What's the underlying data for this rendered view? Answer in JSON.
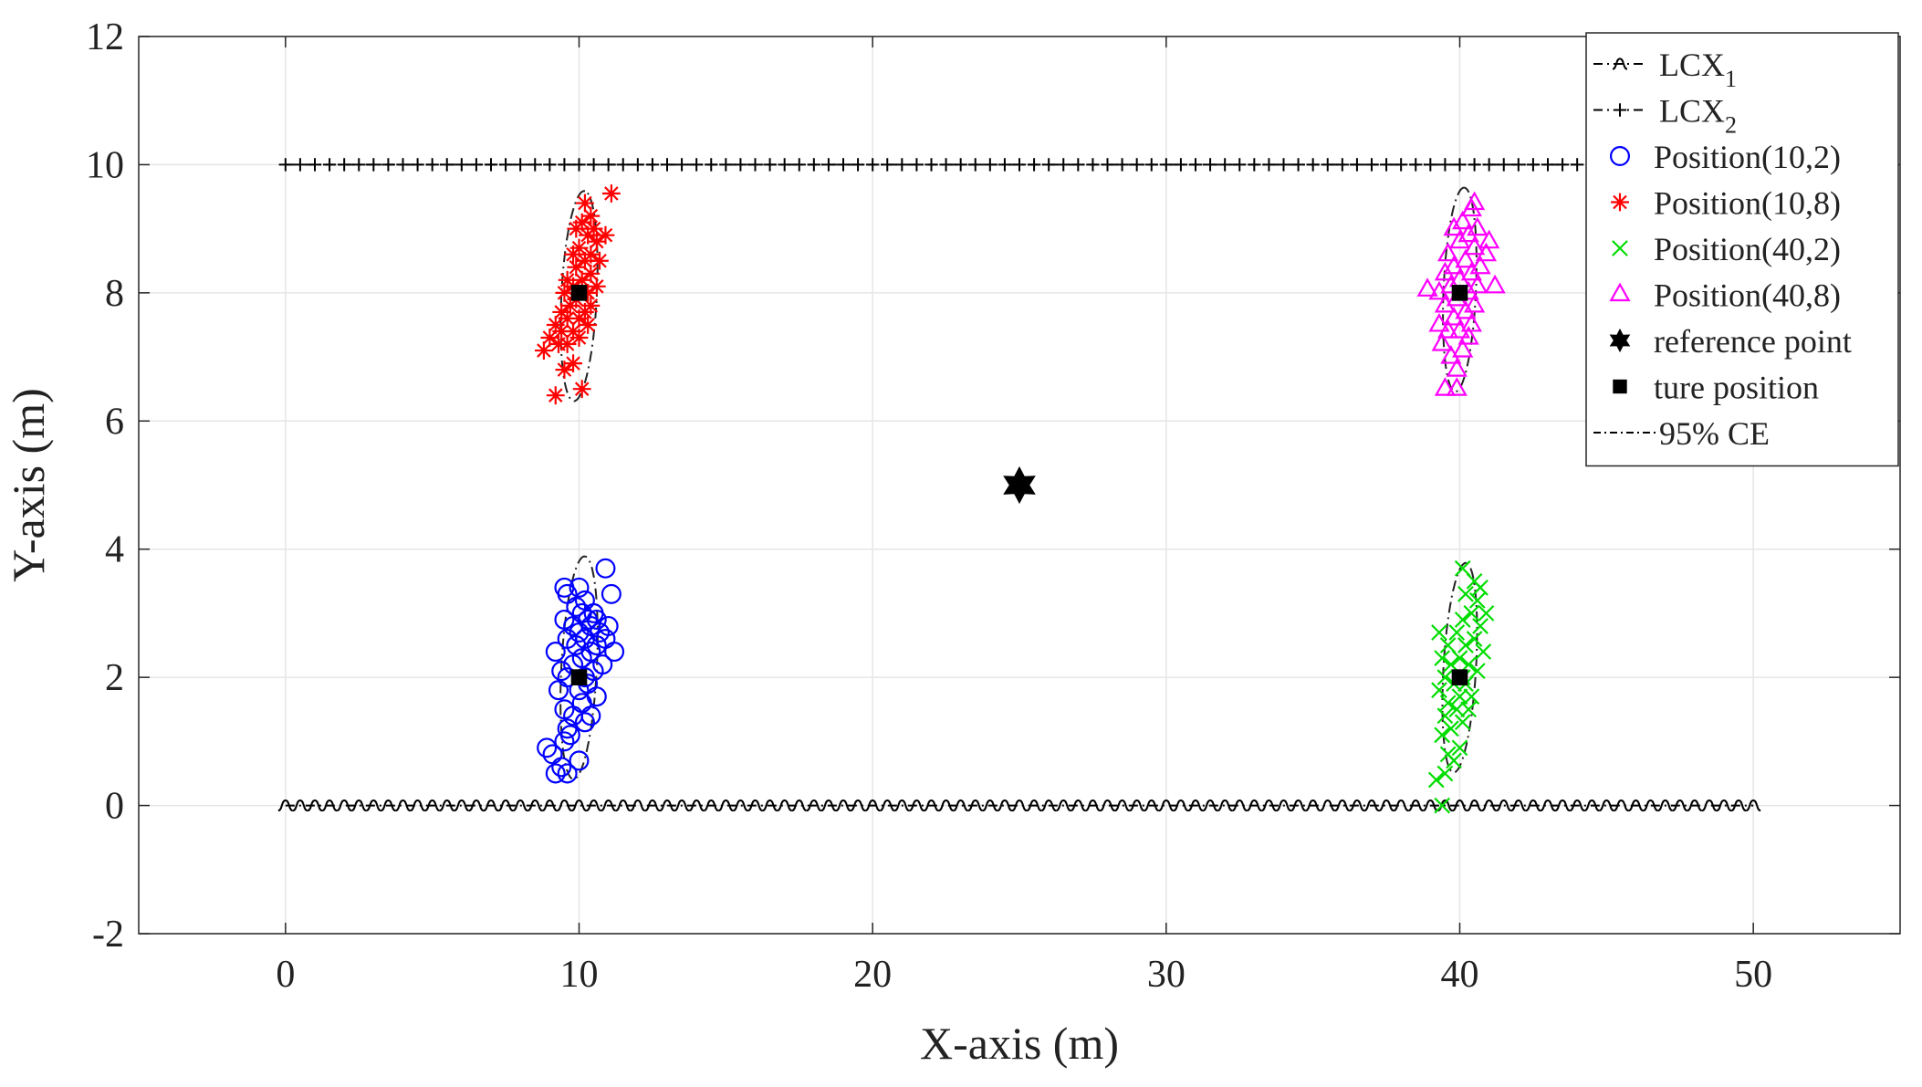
{
  "chart_data": {
    "type": "scatter",
    "title": "",
    "xlabel": "X-axis (m)",
    "ylabel": "Y-axis (m)",
    "xlim": [
      -5,
      55
    ],
    "ylim": [
      -2,
      12
    ],
    "xticks": [
      0,
      10,
      20,
      30,
      40,
      50
    ],
    "yticks": [
      -2,
      0,
      2,
      4,
      6,
      8,
      10,
      12
    ],
    "grid": true,
    "legend_position": "top-right",
    "cables": [
      {
        "name": "LCX",
        "subscript": "1",
        "y": 0,
        "x_range": [
          0,
          50
        ],
        "marker": "s-curl",
        "style": "dash-dot"
      },
      {
        "name": "LCX",
        "subscript": "2",
        "y": 10,
        "x_range": [
          0,
          44
        ],
        "marker": "plus",
        "style": "dash-dot"
      }
    ],
    "series": [
      {
        "name": "Position(10,2)",
        "marker": "circle",
        "color": "#0000ff",
        "points": [
          [
            9.2,
            0.5
          ],
          [
            9.4,
            0.6
          ],
          [
            9.6,
            0.5
          ],
          [
            10.0,
            0.7
          ],
          [
            9.1,
            0.8
          ],
          [
            8.9,
            0.9
          ],
          [
            9.5,
            1.0
          ],
          [
            9.7,
            1.1
          ],
          [
            9.6,
            1.2
          ],
          [
            10.2,
            1.3
          ],
          [
            9.8,
            1.4
          ],
          [
            10.4,
            1.4
          ],
          [
            9.5,
            1.5
          ],
          [
            10.1,
            1.6
          ],
          [
            10.6,
            1.7
          ],
          [
            9.3,
            1.8
          ],
          [
            10.0,
            1.8
          ],
          [
            10.3,
            1.9
          ],
          [
            9.6,
            2.0
          ],
          [
            10.2,
            2.0
          ],
          [
            9.4,
            2.1
          ],
          [
            10.5,
            2.1
          ],
          [
            10.8,
            2.2
          ],
          [
            9.8,
            2.2
          ],
          [
            10.1,
            2.3
          ],
          [
            9.2,
            2.4
          ],
          [
            10.4,
            2.4
          ],
          [
            11.2,
            2.4
          ],
          [
            9.9,
            2.5
          ],
          [
            10.6,
            2.5
          ],
          [
            9.6,
            2.6
          ],
          [
            10.2,
            2.6
          ],
          [
            10.9,
            2.6
          ],
          [
            10.0,
            2.7
          ],
          [
            10.7,
            2.7
          ],
          [
            9.8,
            2.8
          ],
          [
            10.4,
            2.8
          ],
          [
            11.0,
            2.8
          ],
          [
            9.5,
            2.9
          ],
          [
            10.3,
            2.9
          ],
          [
            10.6,
            2.9
          ],
          [
            10.1,
            3.0
          ],
          [
            10.5,
            3.0
          ],
          [
            9.9,
            3.1
          ],
          [
            10.2,
            3.2
          ],
          [
            9.6,
            3.3
          ],
          [
            11.1,
            3.3
          ],
          [
            9.5,
            3.4
          ],
          [
            10.0,
            3.4
          ],
          [
            10.9,
            3.7
          ]
        ]
      },
      {
        "name": "Position(10,8)",
        "marker": "asterisk",
        "color": "#ff0000",
        "points": [
          [
            9.2,
            6.4
          ],
          [
            10.1,
            6.5
          ],
          [
            9.5,
            6.8
          ],
          [
            9.8,
            6.9
          ],
          [
            8.8,
            7.1
          ],
          [
            9.3,
            7.2
          ],
          [
            9.6,
            7.2
          ],
          [
            9.0,
            7.3
          ],
          [
            10.0,
            7.3
          ],
          [
            9.4,
            7.4
          ],
          [
            9.8,
            7.4
          ],
          [
            9.2,
            7.5
          ],
          [
            10.3,
            7.5
          ],
          [
            9.6,
            7.6
          ],
          [
            10.0,
            7.6
          ],
          [
            9.4,
            7.7
          ],
          [
            10.2,
            7.7
          ],
          [
            9.7,
            7.8
          ],
          [
            10.4,
            7.8
          ],
          [
            9.9,
            7.9
          ],
          [
            9.5,
            8.0
          ],
          [
            10.3,
            8.0
          ],
          [
            9.8,
            8.1
          ],
          [
            10.6,
            8.1
          ],
          [
            10.1,
            8.2
          ],
          [
            9.6,
            8.2
          ],
          [
            10.4,
            8.3
          ],
          [
            9.9,
            8.4
          ],
          [
            10.2,
            8.5
          ],
          [
            10.7,
            8.5
          ],
          [
            9.8,
            8.6
          ],
          [
            10.4,
            8.6
          ],
          [
            10.0,
            8.7
          ],
          [
            10.6,
            8.8
          ],
          [
            10.3,
            8.9
          ],
          [
            10.9,
            8.9
          ],
          [
            9.9,
            9.0
          ],
          [
            10.5,
            9.0
          ],
          [
            10.1,
            9.1
          ],
          [
            10.4,
            9.2
          ],
          [
            10.2,
            9.4
          ],
          [
            11.1,
            9.55
          ]
        ]
      },
      {
        "name": "Position(40,2)",
        "marker": "cross",
        "color": "#00dd00",
        "points": [
          [
            39.4,
            0.0
          ],
          [
            39.2,
            0.4
          ],
          [
            39.5,
            0.5
          ],
          [
            39.8,
            0.7
          ],
          [
            39.6,
            0.8
          ],
          [
            40.0,
            0.9
          ],
          [
            39.4,
            1.1
          ],
          [
            39.7,
            1.2
          ],
          [
            40.1,
            1.3
          ],
          [
            39.5,
            1.4
          ],
          [
            39.9,
            1.5
          ],
          [
            40.3,
            1.5
          ],
          [
            39.6,
            1.6
          ],
          [
            40.0,
            1.7
          ],
          [
            40.4,
            1.7
          ],
          [
            39.3,
            1.8
          ],
          [
            39.8,
            1.9
          ],
          [
            40.2,
            1.9
          ],
          [
            39.5,
            2.0
          ],
          [
            40.1,
            2.0
          ],
          [
            40.6,
            2.1
          ],
          [
            39.7,
            2.2
          ],
          [
            40.3,
            2.2
          ],
          [
            39.4,
            2.3
          ],
          [
            40.0,
            2.3
          ],
          [
            40.8,
            2.4
          ],
          [
            39.6,
            2.5
          ],
          [
            40.2,
            2.5
          ],
          [
            40.5,
            2.6
          ],
          [
            39.3,
            2.7
          ],
          [
            39.9,
            2.7
          ],
          [
            40.7,
            2.8
          ],
          [
            40.1,
            2.9
          ],
          [
            40.4,
            3.0
          ],
          [
            40.9,
            3.0
          ],
          [
            40.6,
            3.2
          ],
          [
            40.2,
            3.3
          ],
          [
            40.7,
            3.4
          ],
          [
            40.5,
            3.5
          ],
          [
            40.1,
            3.7
          ]
        ]
      },
      {
        "name": "Position(40,8)",
        "marker": "triangle",
        "color": "#ff00ff",
        "points": [
          [
            39.9,
            6.5
          ],
          [
            39.5,
            6.5
          ],
          [
            39.9,
            6.8
          ],
          [
            39.7,
            7.0
          ],
          [
            40.1,
            7.1
          ],
          [
            39.4,
            7.2
          ],
          [
            40.3,
            7.3
          ],
          [
            39.6,
            7.4
          ],
          [
            40.0,
            7.4
          ],
          [
            39.3,
            7.5
          ],
          [
            40.4,
            7.5
          ],
          [
            39.8,
            7.6
          ],
          [
            40.2,
            7.7
          ],
          [
            39.5,
            7.8
          ],
          [
            40.5,
            7.8
          ],
          [
            39.9,
            7.9
          ],
          [
            39.3,
            8.0
          ],
          [
            38.9,
            8.05
          ],
          [
            40.3,
            8.0
          ],
          [
            39.7,
            8.1
          ],
          [
            40.6,
            8.1
          ],
          [
            41.2,
            8.1
          ],
          [
            40.0,
            8.2
          ],
          [
            39.5,
            8.3
          ],
          [
            40.4,
            8.3
          ],
          [
            39.8,
            8.4
          ],
          [
            40.7,
            8.4
          ],
          [
            40.2,
            8.5
          ],
          [
            39.6,
            8.6
          ],
          [
            40.9,
            8.6
          ],
          [
            40.5,
            8.7
          ],
          [
            40.0,
            8.8
          ],
          [
            41.0,
            8.8
          ],
          [
            40.3,
            8.9
          ],
          [
            39.8,
            9.0
          ],
          [
            40.6,
            9.0
          ],
          [
            40.1,
            9.1
          ],
          [
            40.4,
            9.3
          ],
          [
            40.5,
            9.4
          ]
        ]
      },
      {
        "name": "reference point",
        "marker": "hexagram",
        "color": "#000000",
        "points": [
          [
            25,
            5
          ]
        ]
      },
      {
        "name": "ture position",
        "marker": "square",
        "color": "#000000",
        "points": [
          [
            10,
            2
          ],
          [
            10,
            8
          ],
          [
            40,
            2
          ],
          [
            40,
            8
          ]
        ]
      }
    ],
    "ellipses": [
      {
        "name": "95% CE",
        "center": [
          10,
          2.15
        ],
        "semi_major": 1.75,
        "semi_minor": 0.6,
        "angle_deg": 83
      },
      {
        "name": "95% CE",
        "center": [
          10,
          7.95
        ],
        "semi_major": 1.65,
        "semi_minor": 0.6,
        "angle_deg": 83
      },
      {
        "name": "95% CE",
        "center": [
          40,
          2.15
        ],
        "semi_major": 1.65,
        "semi_minor": 0.55,
        "angle_deg": 82
      },
      {
        "name": "95% CE",
        "center": [
          40,
          8.05
        ],
        "semi_major": 1.6,
        "semi_minor": 0.55,
        "angle_deg": 84
      }
    ],
    "legend": [
      {
        "label": "LCX",
        "subscript": "1",
        "marker": "s-curl",
        "color": "#000000"
      },
      {
        "label": "LCX",
        "subscript": "2",
        "marker": "plus",
        "color": "#000000"
      },
      {
        "label": "Position(10,2)",
        "marker": "circle",
        "color": "#0000ff"
      },
      {
        "label": "Position(10,8)",
        "marker": "asterisk",
        "color": "#ff0000"
      },
      {
        "label": "Position(40,2)",
        "marker": "cross",
        "color": "#00dd00"
      },
      {
        "label": "Position(40,8)",
        "marker": "triangle",
        "color": "#ff00ff"
      },
      {
        "label": "reference point",
        "marker": "hexagram",
        "color": "#000000"
      },
      {
        "label": "ture position",
        "marker": "square",
        "color": "#000000"
      },
      {
        "label": "95% CE",
        "marker": "dashdot",
        "color": "#000000"
      }
    ]
  }
}
